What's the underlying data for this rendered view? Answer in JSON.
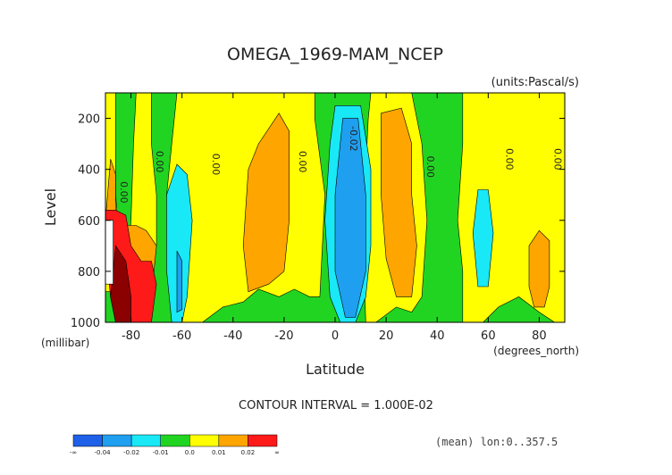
{
  "chart_data": {
    "type": "heatmap",
    "title": "OMEGA_1969-MAM_NCEP",
    "units_label": "(units:Pascal/s)",
    "xlabel": "Latitude",
    "xunits": "(degrees_north)",
    "ylabel": "Level",
    "yunits": "(millibar)",
    "xlim": [
      -90,
      90
    ],
    "ylim": [
      1000,
      100
    ],
    "x_ticks": [
      -80,
      -60,
      -40,
      -20,
      0,
      20,
      40,
      60,
      80
    ],
    "y_ticks": [
      200,
      400,
      600,
      800,
      1000
    ],
    "contour_interval_text": "CONTOUR INTERVAL = 1.000E-02",
    "footer_text": "(mean) lon:0..357.5",
    "contour_labels": [
      {
        "text": "0.00",
        "lat": -84,
        "lev": 490
      },
      {
        "text": "0.00",
        "lat": -70,
        "lev": 370
      },
      {
        "text": "0.00",
        "lat": -48,
        "lev": 380
      },
      {
        "text": "0.00",
        "lat": -14,
        "lev": 370
      },
      {
        "text": "-0.02",
        "lat": 6,
        "lev": 280
      },
      {
        "text": "0.00",
        "lat": 36,
        "lev": 390
      },
      {
        "text": "0.00",
        "lat": 67,
        "lev": 360
      },
      {
        "text": "0.00",
        "lat": 86,
        "lev": 360
      }
    ],
    "colorbar": {
      "levels": [
        "-∞",
        "-0.04",
        "-0.02",
        "-0.01",
        "0.0",
        "0.01",
        "0.02",
        "∞"
      ],
      "colors": [
        "#1e60e8",
        "#1f9ff0",
        "#19e8f6",
        "#22d422",
        "#ffff00",
        "#ffa500",
        "#ff1a1a"
      ]
    },
    "fill_colors": {
      "green": "#22d422",
      "yellow": "#ffff00",
      "orange": "#ffa500",
      "red": "#ff1a1a",
      "darkred": "#8b0000",
      "cyan": "#19e8f6",
      "blue": "#1f9ff0",
      "missing": "#ffffff"
    },
    "regions": [
      {
        "color": "green",
        "poly": [
          [
            -90,
            100
          ],
          [
            90,
            100
          ],
          [
            90,
            1000
          ],
          [
            -90,
            1000
          ]
        ]
      },
      {
        "color": "yellow",
        "poly": [
          [
            -90,
            100
          ],
          [
            -86,
            100
          ],
          [
            -86,
            500
          ],
          [
            -84,
            760
          ],
          [
            -88,
            880
          ],
          [
            -90,
            880
          ]
        ]
      },
      {
        "color": "yellow",
        "poly": [
          [
            -78,
            100
          ],
          [
            -72,
            100
          ],
          [
            -72,
            300
          ],
          [
            -70,
            500
          ],
          [
            -70,
            700
          ],
          [
            -74,
            900
          ],
          [
            -76,
            1000
          ],
          [
            -80,
            1000
          ],
          [
            -82,
            840
          ],
          [
            -80,
            600
          ],
          [
            -79,
            300
          ]
        ]
      },
      {
        "color": "yellow",
        "poly": [
          [
            -62,
            100
          ],
          [
            -8,
            100
          ],
          [
            -8,
            200
          ],
          [
            -4,
            500
          ],
          [
            -6,
            900
          ],
          [
            -10,
            900
          ],
          [
            -16,
            870
          ],
          [
            -22,
            900
          ],
          [
            -30,
            870
          ],
          [
            -36,
            920
          ],
          [
            -44,
            940
          ],
          [
            -52,
            1000
          ],
          [
            -60,
            1000
          ],
          [
            -64,
            700
          ],
          [
            -66,
            500
          ],
          [
            -64,
            300
          ]
        ]
      },
      {
        "color": "yellow",
        "poly": [
          [
            14,
            100
          ],
          [
            30,
            100
          ],
          [
            34,
            300
          ],
          [
            36,
            600
          ],
          [
            34,
            900
          ],
          [
            30,
            960
          ],
          [
            24,
            940
          ],
          [
            16,
            1000
          ],
          [
            12,
            1000
          ],
          [
            11,
            700
          ],
          [
            12,
            400
          ],
          [
            13,
            200
          ]
        ]
      },
      {
        "color": "yellow",
        "poly": [
          [
            50,
            100
          ],
          [
            90,
            100
          ],
          [
            90,
            1000
          ],
          [
            86,
            1000
          ],
          [
            80,
            960
          ],
          [
            72,
            900
          ],
          [
            64,
            940
          ],
          [
            58,
            1000
          ],
          [
            50,
            1000
          ],
          [
            50,
            800
          ],
          [
            48,
            600
          ],
          [
            50,
            300
          ]
        ]
      },
      {
        "color": "orange",
        "poly": [
          [
            -88,
            360
          ],
          [
            -86,
            420
          ],
          [
            -86,
            560
          ],
          [
            -90,
            600
          ]
        ]
      },
      {
        "color": "orange",
        "poly": [
          [
            -82,
            620
          ],
          [
            -78,
            620
          ],
          [
            -74,
            640
          ],
          [
            -70,
            700
          ],
          [
            -72,
            900
          ],
          [
            -76,
            1000
          ],
          [
            -82,
            1000
          ],
          [
            -84,
            900
          ]
        ]
      },
      {
        "color": "orange",
        "poly": [
          [
            -22,
            180
          ],
          [
            -18,
            250
          ],
          [
            -18,
            600
          ],
          [
            -20,
            800
          ],
          [
            -26,
            850
          ],
          [
            -34,
            880
          ],
          [
            -36,
            700
          ],
          [
            -34,
            400
          ],
          [
            -30,
            300
          ]
        ]
      },
      {
        "color": "orange",
        "poly": [
          [
            18,
            180
          ],
          [
            26,
            160
          ],
          [
            30,
            300
          ],
          [
            30,
            500
          ],
          [
            32,
            700
          ],
          [
            30,
            900
          ],
          [
            24,
            900
          ],
          [
            20,
            750
          ],
          [
            18,
            500
          ]
        ]
      },
      {
        "color": "orange",
        "poly": [
          [
            76,
            700
          ],
          [
            80,
            640
          ],
          [
            84,
            680
          ],
          [
            84,
            860
          ],
          [
            82,
            940
          ],
          [
            78,
            940
          ],
          [
            76,
            860
          ]
        ]
      },
      {
        "color": "red",
        "poly": [
          [
            -86,
            560
          ],
          [
            -82,
            580
          ],
          [
            -80,
            700
          ],
          [
            -76,
            760
          ],
          [
            -72,
            760
          ],
          [
            -70,
            850
          ],
          [
            -72,
            1000
          ],
          [
            -86,
            1000
          ],
          [
            -88,
            900
          ],
          [
            -90,
            700
          ],
          [
            -90,
            560
          ]
        ]
      },
      {
        "color": "darkred",
        "poly": [
          [
            -86,
            700
          ],
          [
            -82,
            760
          ],
          [
            -80,
            900
          ],
          [
            -80,
            1000
          ],
          [
            -86,
            1000
          ],
          [
            -88,
            900
          ]
        ]
      },
      {
        "color": "missing",
        "poly": [
          [
            -90,
            600
          ],
          [
            -87,
            600
          ],
          [
            -87,
            850
          ],
          [
            -90,
            850
          ]
        ]
      },
      {
        "color": "cyan",
        "poly": [
          [
            -62,
            380
          ],
          [
            -58,
            420
          ],
          [
            -56,
            600
          ],
          [
            -58,
            900
          ],
          [
            -60,
            1000
          ],
          [
            -64,
            1000
          ],
          [
            -66,
            800
          ],
          [
            -66,
            500
          ]
        ]
      },
      {
        "color": "blue",
        "poly": [
          [
            -62,
            720
          ],
          [
            -60,
            760
          ],
          [
            -60,
            950
          ],
          [
            -62,
            960
          ]
        ]
      },
      {
        "color": "cyan",
        "poly": [
          [
            0,
            150
          ],
          [
            10,
            150
          ],
          [
            14,
            400
          ],
          [
            14,
            700
          ],
          [
            12,
            900
          ],
          [
            8,
            1000
          ],
          [
            2,
            1000
          ],
          [
            -2,
            900
          ],
          [
            -4,
            600
          ],
          [
            -2,
            300
          ]
        ]
      },
      {
        "color": "blue",
        "poly": [
          [
            3,
            200
          ],
          [
            9,
            200
          ],
          [
            12,
            500
          ],
          [
            12,
            800
          ],
          [
            8,
            980
          ],
          [
            4,
            980
          ],
          [
            0,
            800
          ],
          [
            0,
            500
          ],
          [
            2,
            300
          ]
        ]
      },
      {
        "color": "cyan",
        "poly": [
          [
            56,
            480
          ],
          [
            60,
            480
          ],
          [
            62,
            650
          ],
          [
            60,
            860
          ],
          [
            56,
            860
          ],
          [
            54,
            650
          ]
        ]
      }
    ]
  }
}
